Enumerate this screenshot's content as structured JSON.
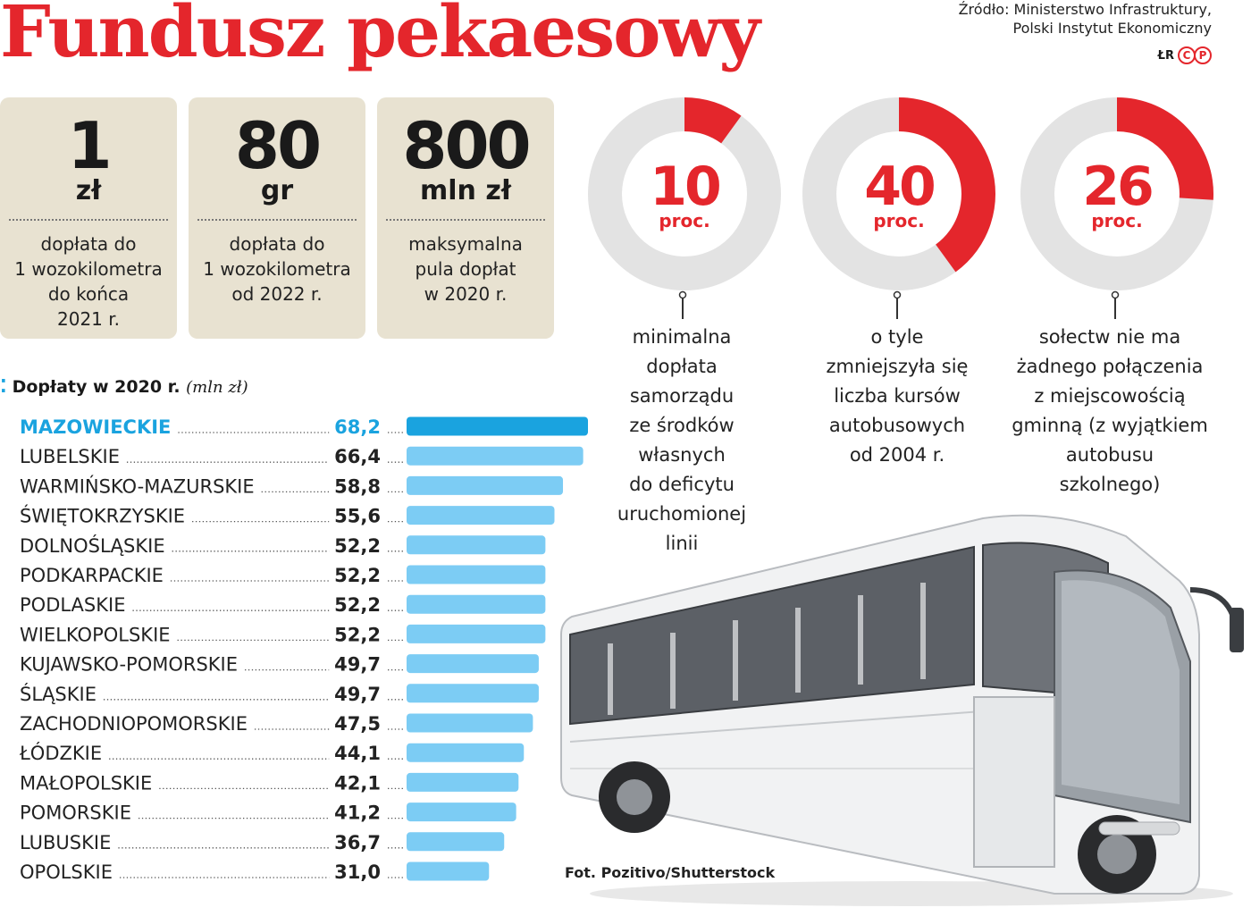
{
  "title": "Fundusz pekaesowy",
  "source": [
    "Źródło: Ministerstwo Infrastruktury,",
    "Polski Instytut Ekonomiczny"
  ],
  "credit": {
    "initials": "ŁR",
    "logo_c": "C",
    "logo_p": "P"
  },
  "colors": {
    "accent": "#e4262c",
    "bar": "#7cccf4",
    "bar_highlight": "#1aa3df",
    "box": "#e8e2d1",
    "ring": "#e3e3e3"
  },
  "boxes": [
    {
      "num": "1",
      "unit": "zł",
      "desc": [
        "dopłata do",
        "1 wozokilometra",
        "do końca",
        "2021 r."
      ]
    },
    {
      "num": "80",
      "unit": "gr",
      "desc": [
        "dopłata do",
        "1 wozokilometra",
        "od 2022 r."
      ]
    },
    {
      "num": "800",
      "unit": "mln zł",
      "desc": [
        "maksymalna",
        "pula dopłat",
        "w 2020 r."
      ]
    }
  ],
  "donuts": [
    {
      "value": 10,
      "num": "10",
      "unit": "proc.",
      "desc": [
        "minimalna",
        "dopłata",
        "samorządu",
        "ze środków",
        "własnych",
        "do deficytu",
        "uruchomionej",
        "linii"
      ]
    },
    {
      "value": 40,
      "num": "40",
      "unit": "proc.",
      "desc": [
        "o tyle",
        "zmniejszyła się",
        "liczba kursów",
        "autobusowych",
        "od 2004 r."
      ]
    },
    {
      "value": 26,
      "num": "26",
      "unit": "proc.",
      "desc": [
        "sołectw nie ma",
        "żadnego połączenia",
        "z miejscowością",
        "gminną (z wyjątkiem",
        "autobusu",
        "szkolnego)"
      ]
    }
  ],
  "chart_data": {
    "type": "bar",
    "orientation": "horizontal",
    "title": "Dopłaty w 2020 r.",
    "unit": "(mln zł)",
    "highlight_index": 0,
    "categories": [
      "MAZOWIECKIE",
      "LUBELSKIE",
      "WARMIŃSKO-MAZURSKIE",
      "ŚWIĘTOKRZYSKIE",
      "DOLNOŚLĄSKIE",
      "PODKARPACKIE",
      "PODLASKIE",
      "WIELKOPOLSKIE",
      "KUJAWSKO-POMORSKIE",
      "ŚLĄSKIE",
      "ZACHODNIOPOMORSKIE",
      "ŁÓDZKIE",
      "MAŁOPOLSKIE",
      "POMORSKIE",
      "LUBUSKIE",
      "OPOLSKIE"
    ],
    "values": [
      68.2,
      66.4,
      58.8,
      55.6,
      52.2,
      52.2,
      52.2,
      52.2,
      49.7,
      49.7,
      47.5,
      44.1,
      42.1,
      41.2,
      36.7,
      31.0
    ],
    "value_labels": [
      "68,2",
      "66,4",
      "58,8",
      "55,6",
      "52,2",
      "52,2",
      "52,2",
      "52,2",
      "49,7",
      "49,7",
      "47,5",
      "44,1",
      "42,1",
      "41,2",
      "36,7",
      "31,0"
    ],
    "xlim": [
      0,
      68.2
    ]
  },
  "photo_credit": "Fot. Pozitivo/Shutterstock"
}
